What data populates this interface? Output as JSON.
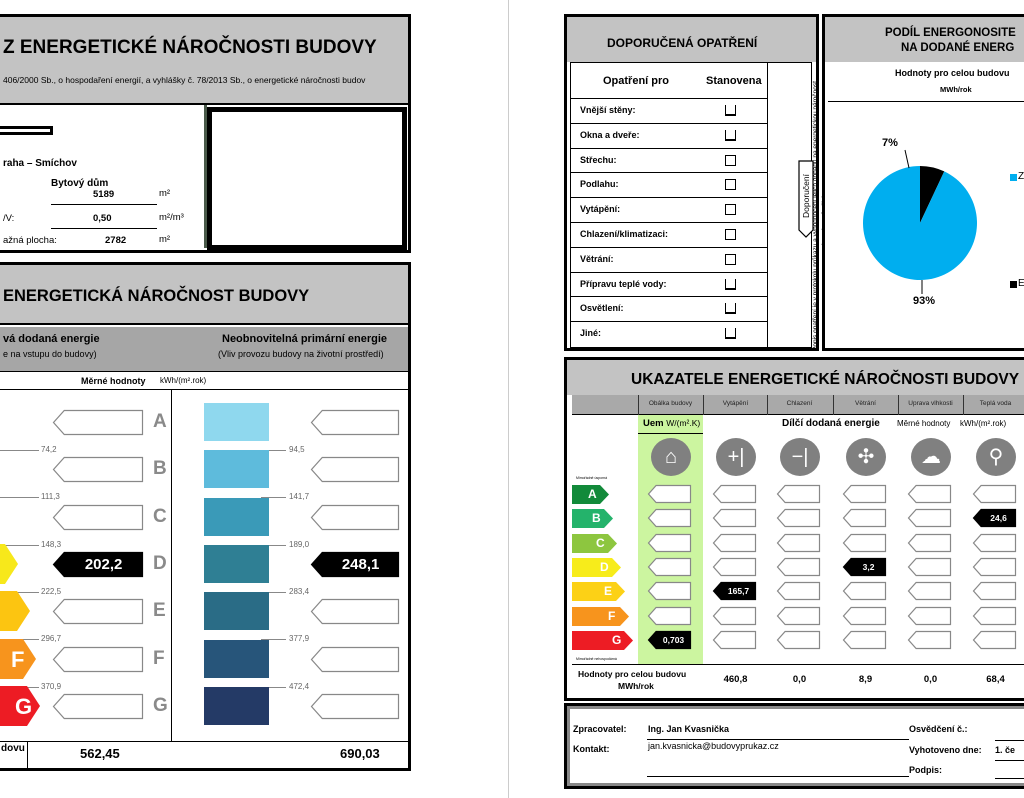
{
  "left_page": {
    "header": {
      "title": "Z ENERGETICKÉ NÁROČNOSTI BUDOVY",
      "subtitle": "406/2000 Sb., o hospodaření energií, a vyhlášky č. 78/2013 Sb., o energetické náročnosti budov"
    },
    "info": {
      "address": "raha – Smíchov",
      "building_type": "Bytový dům",
      "rows": [
        {
          "label": "",
          "value": "5189",
          "unit": "m²"
        },
        {
          "label": "/V:",
          "value": "0,50",
          "unit": "m²/m³"
        },
        {
          "label": "ažná plocha:",
          "value": "2782",
          "unit": "m²"
        }
      ]
    },
    "performance": {
      "title": "ENERGETICKÁ NÁROČNOST BUDOVY",
      "col_left_title": "vá dodaná energie",
      "col_left_sub": "e na vstupu do budovy)",
      "col_right_title": "Neobnovitelná primární energie",
      "col_right_sub": "(Vliv provozu budovy na životní prostředí)",
      "units_label": "Měrné hodnoty",
      "units": "kWh/(m².rok)",
      "classes": [
        "A",
        "B",
        "C",
        "D",
        "E",
        "F",
        "G"
      ],
      "left_thresholds": [
        "74,2",
        "111,3",
        "148,3",
        "222,5",
        "296,7",
        "370,9"
      ],
      "right_thresholds": [
        "94,5",
        "141,7",
        "189,0",
        "283,4",
        "377,9",
        "472,4"
      ],
      "left_value": {
        "class": "D",
        "value": "202,2"
      },
      "right_value": {
        "class": "D",
        "value": "248,1"
      },
      "footer_label": "dovu",
      "footer_left": "562,45",
      "footer_right": "690,03",
      "class_colors": {
        "D": "#f7e81b",
        "E": "#fcc511",
        "F": "#f7941d",
        "G": "#ed1c24"
      },
      "primary_colors": [
        "#8fd8ee",
        "#5ebbdc",
        "#3a9ab8",
        "#2f7f94",
        "#2a6c86",
        "#27557a",
        "#243a66"
      ]
    }
  },
  "right_page": {
    "measures": {
      "title": "DOPORUČENÁ OPATŘENÍ",
      "col1": "Opatření pro",
      "col2": "Stanovena",
      "side_note": "Popis opatření je v protokolu průkazu a vyhodnocení jejich dopadu na energetickou náročnost je znázorněn šipkou",
      "arrow_label": "Doporučení",
      "items": [
        "Vnější stěny:",
        "Okna a dveře:",
        "Střechu:",
        "Podlahu:",
        "Vytápění:",
        "Chlazení/klimatizaci:",
        "Větrání:",
        "Přípravu teplé vody:",
        "Osvětlení:",
        "Jiné:"
      ]
    },
    "share": {
      "title_line1": "PODÍL ENERGONOSITE",
      "title_line2": "NA DODANÉ ENERG",
      "subtitle": "Hodnoty pro celou budovu",
      "unit": "MWh/rok",
      "chart_data": {
        "type": "pie",
        "slices": [
          {
            "name": "Ze",
            "percent": 93,
            "color": "#00aeef"
          },
          {
            "name": "El",
            "percent": 7,
            "color": "#000000"
          }
        ]
      },
      "label_big": "93%",
      "label_small": "7%"
    },
    "indicators": {
      "title": "UKAZATELE ENERGETICKÉ NÁROČNOSTI BUDOVY",
      "columns": [
        "Obálka budovy",
        "Vytápění",
        "Chlazení",
        "Větrání",
        "Úprava vlhkosti",
        "Teplá voda"
      ],
      "uem_label": "Uem",
      "uem_unit": "W/(m².K)",
      "partial_label": "Dílčí dodaná energie",
      "specific_label": "Měrné hodnoty",
      "specific_unit": "kWh/(m².rok)",
      "scale_top": "Mimořádně úsporná",
      "scale_bottom": "Mimořádně nehospodárná",
      "classes": [
        "A",
        "B",
        "C",
        "D",
        "E",
        "F",
        "G"
      ],
      "class_colors": [
        "#128a3a",
        "#24b36b",
        "#8dc63f",
        "#f7ec1b",
        "#fcd116",
        "#f7941d",
        "#ed1c24"
      ],
      "icons": [
        "house-icon",
        "heating-thermometer-icon",
        "cooling-thermometer-icon",
        "fan-icon",
        "humidity-icon",
        "water-tap-icon"
      ],
      "marked": [
        {
          "col": 0,
          "class": "G",
          "value": "0,703"
        },
        {
          "col": 1,
          "class": "E",
          "value": "165,7"
        },
        {
          "col": 3,
          "class": "D",
          "value": "3,2"
        },
        {
          "col": 5,
          "class": "B",
          "value": "24,6"
        }
      ],
      "totals_label_1": "Hodnoty pro celou budovu",
      "totals_label_2": "MWh/rok",
      "totals": [
        "460,8",
        "0,0",
        "8,9",
        "0,0",
        "68,4"
      ],
      "envelope_color": "#ccf5a0"
    },
    "footer": {
      "processor_label": "Zpracovatel:",
      "processor": "Ing. Jan Kvasnička",
      "contact_label": "Kontakt:",
      "contact": "jan.kvasnicka@budovyprukaz.cz",
      "cert_label": "Osvědčení č.:",
      "date_label": "Vyhotoveno dne:",
      "date": "1. če",
      "signature_label": "Podpis:"
    }
  }
}
